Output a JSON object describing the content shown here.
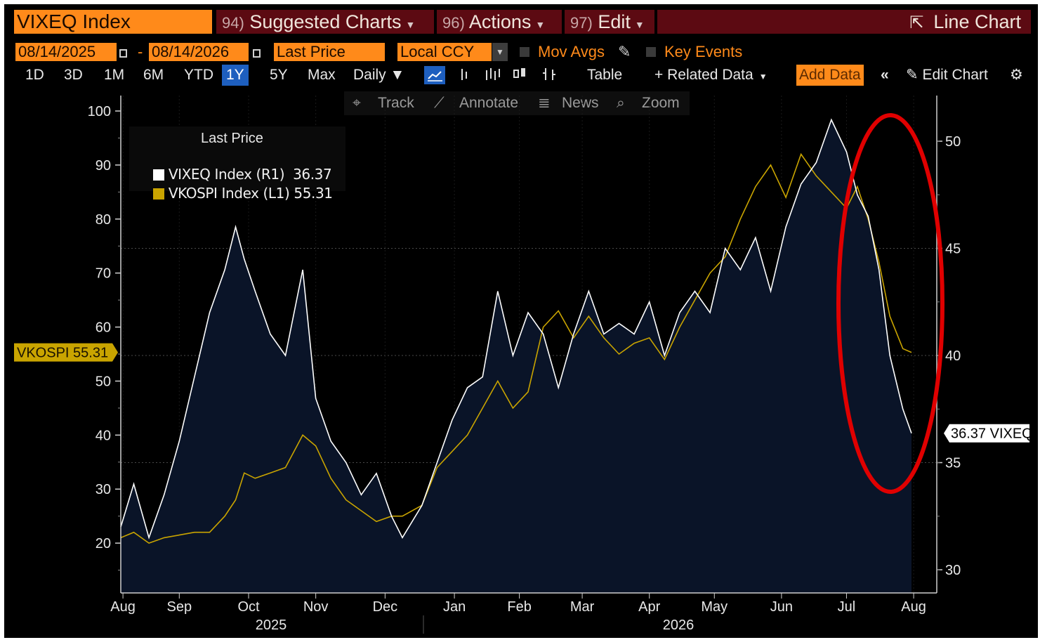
{
  "header": {
    "ticker": "VIXEQ Index",
    "menus": [
      {
        "num": "94)",
        "label": "Suggested Charts"
      },
      {
        "num": "96)",
        "label": "Actions"
      },
      {
        "num": "97)",
        "label": "Edit"
      }
    ],
    "chart_type_label": "Line Chart",
    "start_date": "08/14/2025",
    "date_sep": "-",
    "end_date": "08/14/2026",
    "field": "Last Price",
    "currency": "Local CCY",
    "mov_avgs": "Mov Avgs",
    "key_events": "Key Events"
  },
  "periods": [
    "1D",
    "3D",
    "1M",
    "6M",
    "YTD",
    "1Y",
    "5Y",
    "Max"
  ],
  "selected_period": "1Y",
  "toolbar": {
    "frequency": "Daily ▼",
    "table": "Table",
    "related_data": "+ Related Data",
    "add_data": "Add Data",
    "collapse": "«",
    "edit_chart": "Edit Chart"
  },
  "tools": {
    "track": "Track",
    "annotate": "Annotate",
    "news": "News",
    "zoom": "Zoom"
  },
  "colors": {
    "vixeq": "#ffffff",
    "vkospi": "#c9a400",
    "orange": "#ff8a1a",
    "menu_bg": "#5c0a12",
    "circle": "#e00000",
    "area": "#0a1428"
  },
  "chart_data": {
    "type": "line",
    "legend_title": "Last Price",
    "series": [
      {
        "name": "VIXEQ Index",
        "axis_tag": "(R1)",
        "last": "36.37",
        "axis": "right",
        "points": [
          [
            "2025-08-14",
            32
          ],
          [
            "2025-08-20",
            34
          ],
          [
            "2025-08-27",
            31.5
          ],
          [
            "2025-09-03",
            33.5
          ],
          [
            "2025-09-10",
            36
          ],
          [
            "2025-09-17",
            39
          ],
          [
            "2025-09-24",
            42
          ],
          [
            "2025-10-01",
            44
          ],
          [
            "2025-10-06",
            46
          ],
          [
            "2025-10-10",
            44.5
          ],
          [
            "2025-10-15",
            43
          ],
          [
            "2025-10-22",
            41
          ],
          [
            "2025-10-29",
            40
          ],
          [
            "2025-11-06",
            44
          ],
          [
            "2025-11-12",
            38
          ],
          [
            "2025-11-19",
            36
          ],
          [
            "2025-11-26",
            35
          ],
          [
            "2025-12-03",
            33.5
          ],
          [
            "2025-12-10",
            34.5
          ],
          [
            "2025-12-17",
            32.5
          ],
          [
            "2025-12-22",
            31.5
          ],
          [
            "2025-12-31",
            33
          ],
          [
            "2026-01-07",
            35
          ],
          [
            "2026-01-14",
            37
          ],
          [
            "2026-01-21",
            38.5
          ],
          [
            "2026-01-28",
            39
          ],
          [
            "2026-02-04",
            43
          ],
          [
            "2026-02-11",
            40
          ],
          [
            "2026-02-18",
            42
          ],
          [
            "2026-02-25",
            41
          ],
          [
            "2026-03-04",
            38.5
          ],
          [
            "2026-03-11",
            41
          ],
          [
            "2026-03-18",
            43
          ],
          [
            "2026-03-25",
            41
          ],
          [
            "2026-04-01",
            41.5
          ],
          [
            "2026-04-08",
            41
          ],
          [
            "2026-04-15",
            42.5
          ],
          [
            "2026-04-22",
            40
          ],
          [
            "2026-04-29",
            42
          ],
          [
            "2026-05-06",
            43
          ],
          [
            "2026-05-13",
            42
          ],
          [
            "2026-05-20",
            45
          ],
          [
            "2026-05-27",
            44
          ],
          [
            "2026-06-03",
            45.5
          ],
          [
            "2026-06-10",
            43
          ],
          [
            "2026-06-17",
            46
          ],
          [
            "2026-06-24",
            48
          ],
          [
            "2026-07-01",
            49
          ],
          [
            "2026-07-08",
            51
          ],
          [
            "2026-07-15",
            49.5
          ],
          [
            "2026-07-20",
            47.5
          ],
          [
            "2026-07-25",
            46.5
          ],
          [
            "2026-07-30",
            44
          ],
          [
            "2026-08-04",
            40
          ],
          [
            "2026-08-10",
            37.5
          ],
          [
            "2026-08-14",
            36.37
          ]
        ]
      },
      {
        "name": "VKOSPI Index",
        "axis_tag": "(L1)",
        "last": "55.31",
        "axis": "left",
        "points": [
          [
            "2025-08-14",
            21
          ],
          [
            "2025-08-20",
            22
          ],
          [
            "2025-08-27",
            20
          ],
          [
            "2025-09-03",
            21
          ],
          [
            "2025-09-10",
            21.5
          ],
          [
            "2025-09-17",
            22
          ],
          [
            "2025-09-24",
            22
          ],
          [
            "2025-10-01",
            25
          ],
          [
            "2025-10-06",
            28
          ],
          [
            "2025-10-10",
            33
          ],
          [
            "2025-10-15",
            32
          ],
          [
            "2025-10-22",
            33
          ],
          [
            "2025-10-29",
            34
          ],
          [
            "2025-11-06",
            40
          ],
          [
            "2025-11-12",
            38
          ],
          [
            "2025-11-19",
            32
          ],
          [
            "2025-11-26",
            28
          ],
          [
            "2025-12-03",
            26
          ],
          [
            "2025-12-10",
            24
          ],
          [
            "2025-12-17",
            25
          ],
          [
            "2025-12-22",
            25
          ],
          [
            "2025-12-31",
            27
          ],
          [
            "2026-01-07",
            34
          ],
          [
            "2026-01-14",
            37
          ],
          [
            "2026-01-21",
            40
          ],
          [
            "2026-01-28",
            45
          ],
          [
            "2026-02-04",
            50
          ],
          [
            "2026-02-11",
            45
          ],
          [
            "2026-02-18",
            48
          ],
          [
            "2026-02-25",
            60
          ],
          [
            "2026-03-04",
            63
          ],
          [
            "2026-03-11",
            58
          ],
          [
            "2026-03-18",
            62
          ],
          [
            "2026-03-25",
            58
          ],
          [
            "2026-04-01",
            55
          ],
          [
            "2026-04-08",
            57
          ],
          [
            "2026-04-15",
            58
          ],
          [
            "2026-04-22",
            54
          ],
          [
            "2026-04-29",
            60
          ],
          [
            "2026-05-06",
            65
          ],
          [
            "2026-05-13",
            70
          ],
          [
            "2026-05-20",
            73
          ],
          [
            "2026-05-27",
            80
          ],
          [
            "2026-06-03",
            86
          ],
          [
            "2026-06-10",
            90
          ],
          [
            "2026-06-17",
            84
          ],
          [
            "2026-06-24",
            92
          ],
          [
            "2026-07-01",
            88
          ],
          [
            "2026-07-08",
            85
          ],
          [
            "2026-07-15",
            82
          ],
          [
            "2026-07-20",
            86
          ],
          [
            "2026-07-25",
            80
          ],
          [
            "2026-07-30",
            72
          ],
          [
            "2026-08-04",
            62
          ],
          [
            "2026-08-10",
            56
          ],
          [
            "2026-08-14",
            55.31
          ]
        ]
      }
    ],
    "left_axis": {
      "ticks": [
        20,
        30,
        40,
        50,
        60,
        70,
        80,
        90,
        100
      ],
      "ylim": [
        10,
        100
      ]
    },
    "right_axis": {
      "ticks": [
        30,
        35,
        40,
        45,
        50
      ],
      "ylim": [
        29,
        52.5
      ]
    },
    "x_ticks": [
      "Aug",
      "Sep",
      "Oct",
      "Nov",
      "Dec",
      "Jan",
      "Feb",
      "Mar",
      "Apr",
      "May",
      "Jun",
      "Jul",
      "Aug"
    ],
    "x_tick_dates": [
      "2025-08-15",
      "2025-09-10",
      "2025-10-12",
      "2025-11-12",
      "2025-12-14",
      "2026-01-15",
      "2026-02-14",
      "2026-03-15",
      "2026-04-15",
      "2026-05-15",
      "2026-06-15",
      "2026-07-15",
      "2026-08-15"
    ],
    "years": [
      "2025",
      "2026"
    ],
    "left_tag": "VKOSPI 55.31",
    "right_tag": "36.37 VIXEQ",
    "grid": true,
    "legend_position": "top-left"
  }
}
